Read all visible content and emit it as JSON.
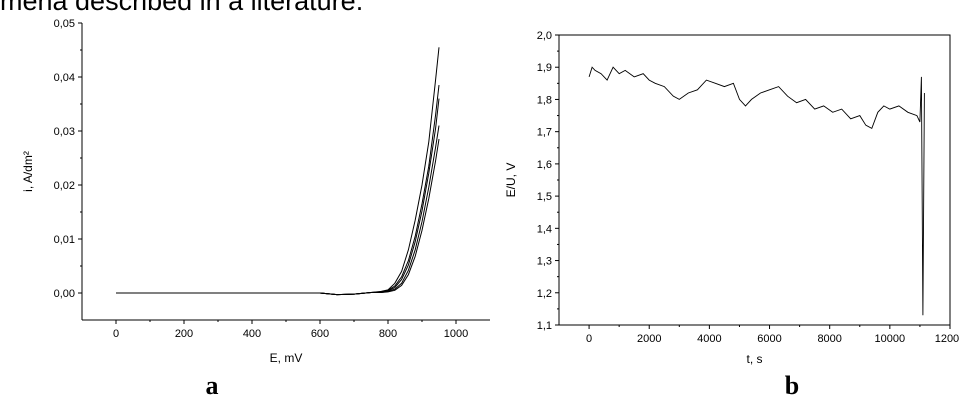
{
  "header": {
    "text": "mena described in a literature."
  },
  "panel_labels": {
    "a": "a",
    "b": "b"
  },
  "chart_data": [
    {
      "type": "line",
      "title": "",
      "xlabel": "E, mV",
      "ylabel": "i, A/dm²",
      "xlim": [
        -100,
        1100
      ],
      "ylim": [
        -0.005,
        0.05
      ],
      "xticks": [
        0,
        200,
        400,
        600,
        800,
        1000
      ],
      "xtick_labels": [
        "0",
        "200",
        "400",
        "600",
        "800",
        "1000"
      ],
      "yticks": [
        0.0,
        0.01,
        0.02,
        0.03,
        0.04,
        0.05
      ],
      "ytick_labels": [
        "0,00",
        "0,01",
        "0,02",
        "0,03",
        "0,04",
        "0,05"
      ],
      "series": [
        {
          "x": [
            0,
            200,
            400,
            600,
            650,
            700,
            750,
            780,
            800,
            820,
            840,
            860,
            880,
            900,
            920,
            940,
            950
          ],
          "values": [
            0,
            0,
            0,
            0,
            -0.0003,
            -0.0002,
            0.0001,
            0.0003,
            0.0006,
            0.0018,
            0.004,
            0.008,
            0.0135,
            0.02,
            0.028,
            0.0395,
            0.0455
          ]
        },
        {
          "x": [
            0,
            200,
            400,
            600,
            650,
            700,
            750,
            780,
            800,
            820,
            840,
            860,
            880,
            900,
            920,
            940,
            950
          ],
          "values": [
            0,
            0,
            0,
            0,
            -0.0003,
            -0.0002,
            0.0001,
            0.0002,
            0.0005,
            0.0013,
            0.003,
            0.006,
            0.0105,
            0.0165,
            0.0235,
            0.033,
            0.0385
          ]
        },
        {
          "x": [
            0,
            200,
            400,
            600,
            650,
            700,
            750,
            780,
            800,
            820,
            840,
            860,
            880,
            900,
            920,
            940,
            950
          ],
          "values": [
            0,
            0,
            0,
            0,
            -0.0003,
            -0.0002,
            0.0001,
            0.0002,
            0.0004,
            0.001,
            0.0025,
            0.0052,
            0.0095,
            0.0152,
            0.0222,
            0.0305,
            0.036
          ]
        },
        {
          "x": [
            0,
            200,
            400,
            600,
            650,
            700,
            750,
            780,
            800,
            820,
            840,
            860,
            880,
            900,
            920,
            940,
            950
          ],
          "values": [
            0,
            0,
            0,
            0,
            -0.0003,
            -0.0002,
            0.0001,
            0.0001,
            0.0003,
            0.0007,
            0.0018,
            0.0042,
            0.008,
            0.0132,
            0.0196,
            0.027,
            0.031
          ]
        },
        {
          "x": [
            0,
            200,
            400,
            600,
            650,
            700,
            750,
            780,
            800,
            820,
            840,
            860,
            880,
            900,
            920,
            940,
            950
          ],
          "values": [
            0,
            0,
            0,
            0,
            -0.0003,
            -0.0002,
            0.0001,
            0.0001,
            0.0002,
            0.0005,
            0.0014,
            0.0034,
            0.0068,
            0.0116,
            0.0175,
            0.0245,
            0.0285
          ]
        }
      ]
    },
    {
      "type": "line",
      "title": "",
      "xlabel": "t, s",
      "ylabel": "E/U, V",
      "xlim": [
        -1000,
        12000
      ],
      "ylim": [
        1.1,
        2.0
      ],
      "xticks": [
        0,
        2000,
        4000,
        6000,
        8000,
        10000,
        12000
      ],
      "xtick_labels": [
        "0",
        "2000",
        "4000",
        "6000",
        "8000",
        "10000",
        "12000"
      ],
      "yticks": [
        1.1,
        1.2,
        1.3,
        1.4,
        1.5,
        1.6,
        1.7,
        1.8,
        1.9,
        2.0
      ],
      "ytick_labels": [
        "1,1",
        "1,2",
        "1,3",
        "1,4",
        "1,5",
        "1,6",
        "1,7",
        "1,8",
        "1,9",
        "2,0"
      ],
      "series": [
        {
          "x": [
            0,
            100,
            200,
            400,
            600,
            800,
            1000,
            1200,
            1500,
            1800,
            2000,
            2200,
            2500,
            2800,
            3000,
            3300,
            3600,
            3900,
            4200,
            4500,
            4800,
            5000,
            5200,
            5400,
            5700,
            6000,
            6300,
            6600,
            6900,
            7200,
            7500,
            7800,
            8100,
            8400,
            8700,
            9000,
            9200,
            9400,
            9600,
            9800,
            10000,
            10300,
            10600,
            10900,
            11000,
            11050,
            11100,
            11150
          ],
          "values": [
            1.87,
            1.9,
            1.89,
            1.88,
            1.86,
            1.9,
            1.88,
            1.89,
            1.87,
            1.88,
            1.86,
            1.85,
            1.84,
            1.81,
            1.8,
            1.82,
            1.83,
            1.86,
            1.85,
            1.84,
            1.85,
            1.8,
            1.78,
            1.8,
            1.82,
            1.83,
            1.84,
            1.81,
            1.79,
            1.8,
            1.77,
            1.78,
            1.76,
            1.77,
            1.74,
            1.75,
            1.72,
            1.71,
            1.76,
            1.78,
            1.77,
            1.78,
            1.76,
            1.75,
            1.73,
            1.87,
            1.13,
            1.82
          ]
        }
      ]
    }
  ]
}
